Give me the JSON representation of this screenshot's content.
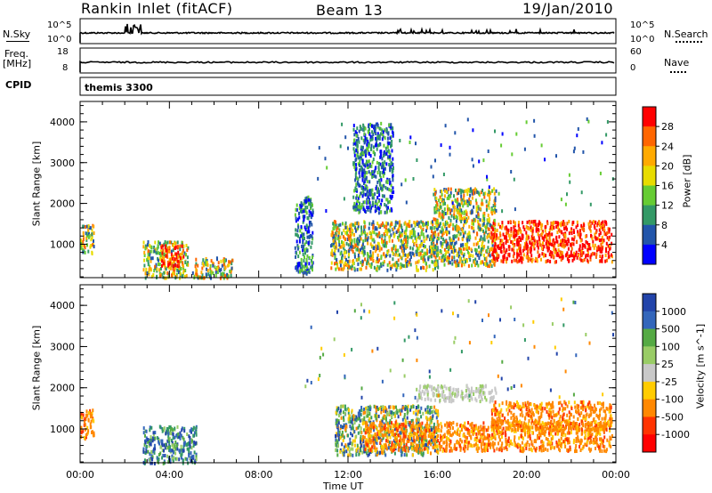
{
  "header": {
    "station": "Rankin Inlet (fitACF)",
    "beam": "Beam 13",
    "date": "19/Jan/2010"
  },
  "noise_panel": {
    "left_label": "N.Sky",
    "right_label": "N.Search",
    "left_ticks": [
      "10^5",
      "10^0"
    ],
    "right_ticks": [
      "10^5",
      "10^0"
    ]
  },
  "freq_panel": {
    "left_label_line1": "Freq.",
    "left_label_line2": "[MHz]",
    "right_label": "Nave",
    "left_ticks": [
      "18",
      "8"
    ],
    "right_ticks": [
      "60",
      "0"
    ]
  },
  "cpid_panel": {
    "label": "CPID",
    "value": "themis 3300"
  },
  "chart_data": [
    {
      "type": "heatmap",
      "title": "",
      "parameter": "Power",
      "ylabel": "Slant Range [km]",
      "ylim": [
        180,
        4500
      ],
      "yticks": [
        "1000",
        "2000",
        "3000",
        "4000"
      ],
      "colorbar_label": "Power [dB]",
      "colorbar_ticks": [
        "28",
        "24",
        "20",
        "16",
        "12",
        "8",
        "4"
      ],
      "colorbar_colors": [
        "#ff0000",
        "#ff6600",
        "#ffaa00",
        "#e8dc00",
        "#66cc33",
        "#339966",
        "#2255aa",
        "#0000ff"
      ],
      "xlim_hours": [
        0,
        24
      ],
      "echo_regions": [
        {
          "t": [
            0.0,
            0.6
          ],
          "r": [
            800,
            1500
          ],
          "level": "mid"
        },
        {
          "t": [
            2.8,
            4.8
          ],
          "r": [
            200,
            1100
          ],
          "level": "mid"
        },
        {
          "t": [
            3.6,
            4.6
          ],
          "r": [
            500,
            1000
          ],
          "level": "high"
        },
        {
          "t": [
            5.0,
            6.8
          ],
          "r": [
            200,
            700
          ],
          "level": "mid"
        },
        {
          "t": [
            9.6,
            10.4
          ],
          "r": [
            300,
            2200
          ],
          "level": "low"
        },
        {
          "t": [
            11.2,
            16.0
          ],
          "r": [
            400,
            1600
          ],
          "level": "mid"
        },
        {
          "t": [
            12.2,
            14.0
          ],
          "r": [
            1800,
            4000
          ],
          "level": "low"
        },
        {
          "t": [
            15.8,
            18.6
          ],
          "r": [
            500,
            2400
          ],
          "level": "mid"
        },
        {
          "t": [
            18.4,
            23.8
          ],
          "r": [
            600,
            1600
          ],
          "level": "high"
        }
      ]
    },
    {
      "type": "heatmap",
      "title": "",
      "parameter": "Velocity",
      "ylabel": "Slant Range [km]",
      "ylim": [
        180,
        4500
      ],
      "yticks": [
        "1000",
        "2000",
        "3000",
        "4000"
      ],
      "colorbar_label": "Velocity [m s^-1]",
      "colorbar_ticks": [
        "1000",
        "500",
        "100",
        "25",
        "-25",
        "-100",
        "-500",
        "-1000"
      ],
      "colorbar_colors": [
        "#2244aa",
        "#3366bb",
        "#55aa44",
        "#99cc66",
        "#c8c8c8",
        "#ffcc00",
        "#ff8800",
        "#ff3300",
        "#ff0000"
      ],
      "xlim_hours": [
        0,
        24
      ],
      "echo_regions": [
        {
          "t": [
            0.0,
            0.6
          ],
          "r": [
            800,
            1500
          ],
          "level": "neg"
        },
        {
          "t": [
            2.8,
            5.2
          ],
          "r": [
            200,
            1100
          ],
          "level": "pos"
        },
        {
          "t": [
            11.4,
            16.0
          ],
          "r": [
            400,
            1600
          ],
          "level": "mixed"
        },
        {
          "t": [
            15.0,
            18.6
          ],
          "r": [
            1700,
            2100
          ],
          "level": "zero"
        },
        {
          "t": [
            12.6,
            23.8
          ],
          "r": [
            500,
            1200
          ],
          "level": "neg"
        },
        {
          "t": [
            18.4,
            23.8
          ],
          "r": [
            1000,
            1700
          ],
          "level": "neg"
        }
      ]
    }
  ],
  "time_axis": {
    "ticks": [
      "00:00",
      "04:00",
      "08:00",
      "12:00",
      "16:00",
      "20:00",
      "00:00"
    ],
    "label": "Time UT"
  }
}
